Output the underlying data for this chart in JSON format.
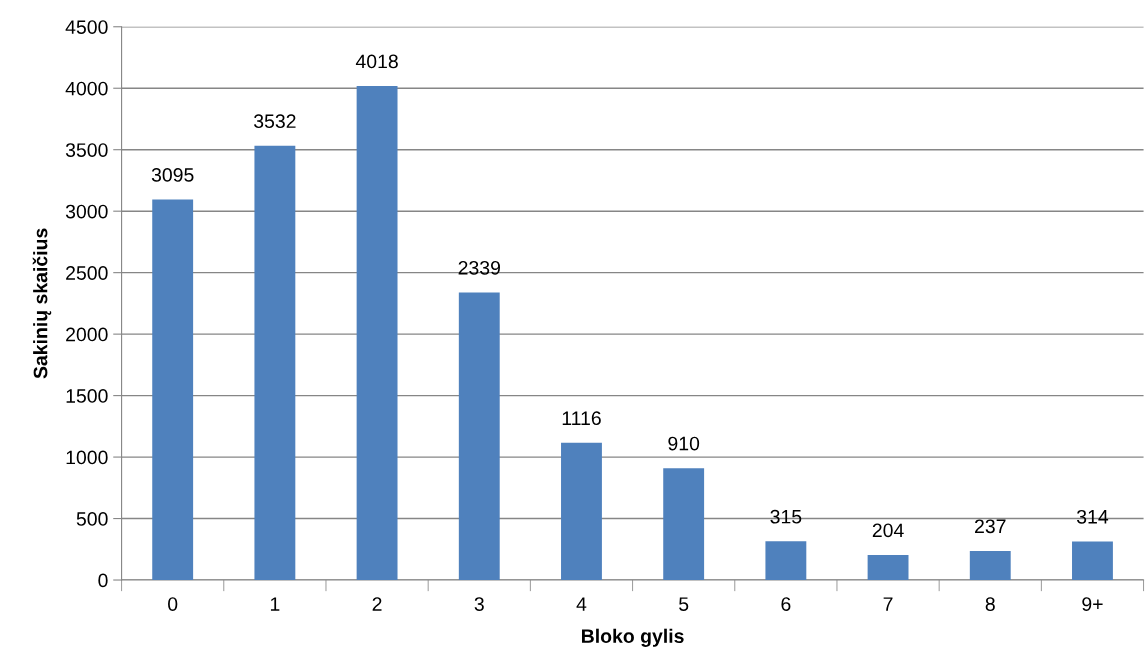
{
  "chart_data": {
    "type": "bar",
    "xlabel": "Bloko gylis",
    "ylabel": "Sakinių skaičius",
    "categories": [
      "0",
      "1",
      "2",
      "3",
      "4",
      "5",
      "6",
      "7",
      "8",
      "9+"
    ],
    "values": [
      3095,
      3532,
      4018,
      2339,
      1116,
      910,
      315,
      204,
      237,
      314
    ],
    "color": "#4f81bd",
    "ylim": [
      0,
      4500
    ],
    "yticks": [
      0,
      500,
      1000,
      1500,
      2000,
      2500,
      3000,
      3500,
      4000,
      4500
    ],
    "grid": "y",
    "data_labels": true
  }
}
